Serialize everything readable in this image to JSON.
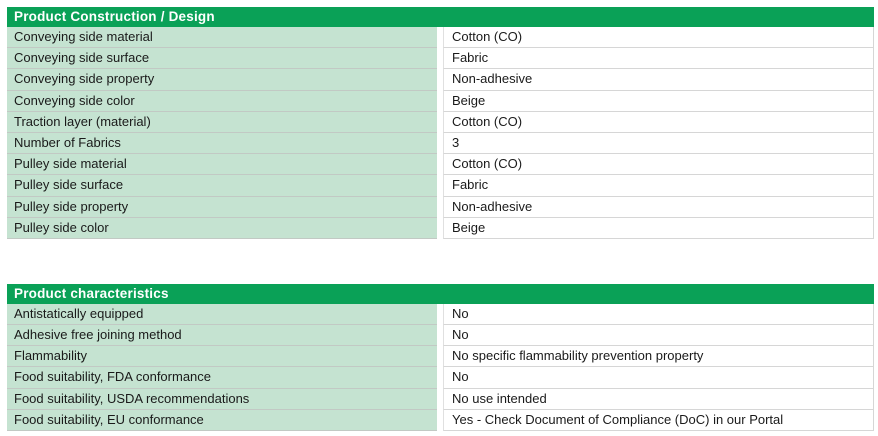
{
  "colors": {
    "header_green": "#0aa157",
    "row_green": "#c5e3d1",
    "label_grid_line": "#c2c9c4",
    "value_grid_line": "#d6d6d6",
    "text": "#1a1a1a",
    "header_text": "#ffffff"
  },
  "tables": [
    {
      "title": "Product Construction / Design",
      "rows": [
        {
          "label": "Conveying side material",
          "value": "Cotton (CO)"
        },
        {
          "label": "Conveying side surface",
          "value": "Fabric"
        },
        {
          "label": "Conveying side property",
          "value": "Non-adhesive"
        },
        {
          "label": "Conveying side color",
          "value": "Beige"
        },
        {
          "label": "Traction layer (material)",
          "value": "Cotton (CO)"
        },
        {
          "label": "Number of Fabrics",
          "value": "3"
        },
        {
          "label": "Pulley side material",
          "value": "Cotton (CO)"
        },
        {
          "label": "Pulley side surface",
          "value": "Fabric"
        },
        {
          "label": "Pulley side property",
          "value": "Non-adhesive"
        },
        {
          "label": "Pulley side color",
          "value": "Beige"
        }
      ]
    },
    {
      "title": "Product characteristics",
      "rows": [
        {
          "label": "Antistatically equipped",
          "value": "No"
        },
        {
          "label": "Adhesive free joining method",
          "value": "No"
        },
        {
          "label": "Flammability",
          "value": "No specific flammability prevention property"
        },
        {
          "label": "Food suitability, FDA conformance",
          "value": "No"
        },
        {
          "label": "Food suitability, USDA recommendations",
          "value": "No use intended"
        },
        {
          "label": "Food suitability, EU conformance",
          "value": "Yes - Check Document of Compliance (DoC) in our Portal"
        }
      ]
    }
  ]
}
